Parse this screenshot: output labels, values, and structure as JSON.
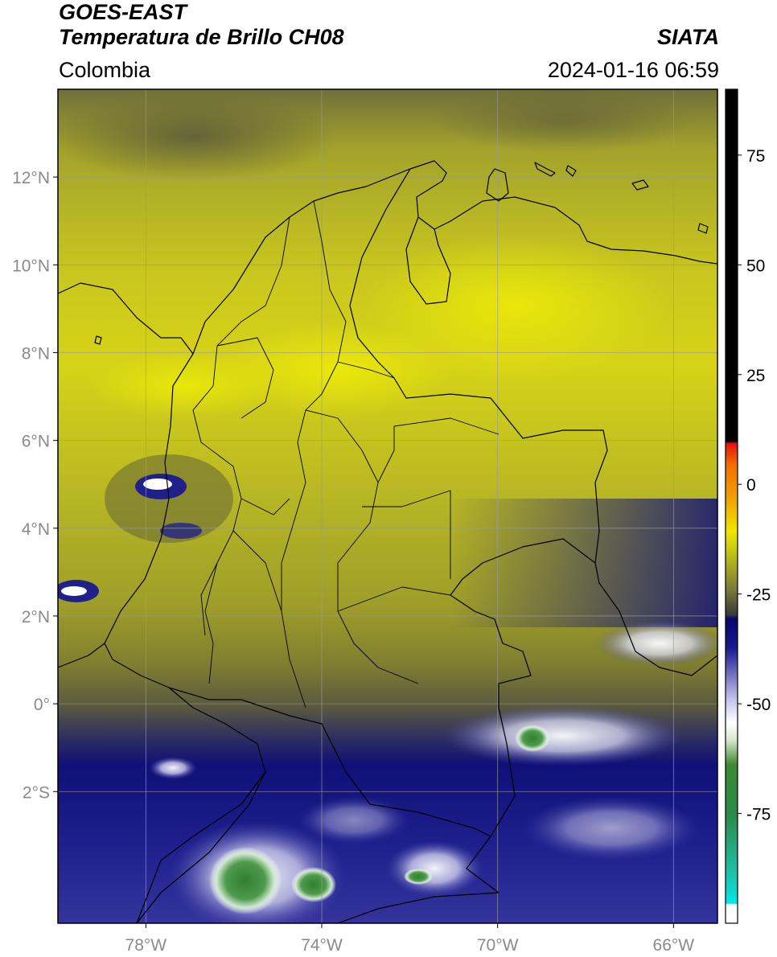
{
  "header": {
    "satellite": "GOES-EAST",
    "product": "Temperatura de Brillo CH08",
    "region": "Colombia",
    "organization": "SIATA",
    "datetime": "2024-01-16 06:59"
  },
  "map": {
    "lon_range": [
      -80,
      -65
    ],
    "lat_range": [
      -5,
      14
    ],
    "lon_ticks": [
      {
        "value": -78,
        "label": "78°W"
      },
      {
        "value": -74,
        "label": "74°W"
      },
      {
        "value": -70,
        "label": "70°W"
      },
      {
        "value": -66,
        "label": "66°W"
      }
    ],
    "lat_ticks": [
      {
        "value": 12,
        "label": "12°N"
      },
      {
        "value": 10,
        "label": "10°N"
      },
      {
        "value": 8,
        "label": "8°N"
      },
      {
        "value": 6,
        "label": "6°N"
      },
      {
        "value": 4,
        "label": "4°N"
      },
      {
        "value": 2,
        "label": "2°N"
      },
      {
        "value": 0,
        "label": "0°"
      },
      {
        "value": -2,
        "label": "2°S"
      }
    ],
    "grid": true
  },
  "colorbar": {
    "range": [
      -100,
      90
    ],
    "ticks": [
      {
        "value": 75,
        "label": "75"
      },
      {
        "value": 50,
        "label": "50"
      },
      {
        "value": 25,
        "label": "25"
      },
      {
        "value": 0,
        "label": "0"
      },
      {
        "value": -25,
        "label": "-25"
      },
      {
        "value": -50,
        "label": "-50"
      },
      {
        "value": -75,
        "label": "-75"
      }
    ],
    "colors": {
      "black": "#000000",
      "red": "#e8200c",
      "orange": "#f08c00",
      "yellow": "#e6e20a",
      "olive": "#8e8d28",
      "gray": "#555555",
      "navy": "#0a0a80",
      "lavender": "#c7c7ec",
      "white": "#ffffff",
      "green": "#2e7a2e",
      "teal": "#22b59a",
      "cyan": "#00e0e0"
    }
  }
}
